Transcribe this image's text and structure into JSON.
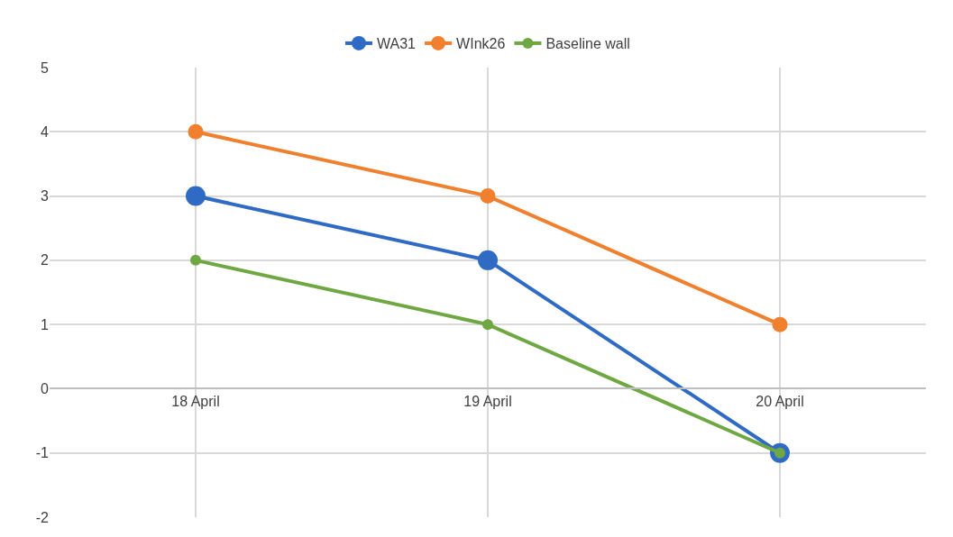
{
  "chart_data": {
    "type": "line",
    "categories": [
      "18 April",
      "19 April",
      "20 April"
    ],
    "series": [
      {
        "name": "WA31",
        "color": "#2f6bc4",
        "values": [
          3,
          2,
          -1
        ]
      },
      {
        "name": "WInk26",
        "color": "#f07f2e",
        "values": [
          4,
          3,
          1
        ]
      },
      {
        "name": "Baseline wall",
        "color": "#6fa843",
        "values": [
          2,
          1,
          -1
        ]
      }
    ],
    "ylim": [
      -2,
      5
    ],
    "yticks": [
      -2,
      -1,
      0,
      1,
      2,
      3,
      4,
      5
    ],
    "grid": true,
    "legend": "top",
    "marker": "circle",
    "line_style": "solid"
  }
}
